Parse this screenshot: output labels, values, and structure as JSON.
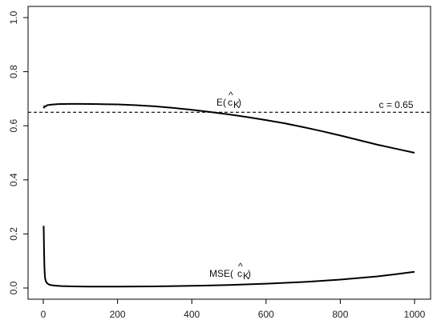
{
  "chart_data": {
    "type": "line",
    "xlim": [
      0,
      1000
    ],
    "ylim": [
      0,
      1
    ],
    "x_ticks": [
      "0",
      "200",
      "400",
      "600",
      "800",
      "1000"
    ],
    "y_ticks": [
      "0.0",
      "0.2",
      "0.4",
      "0.6",
      "0.8",
      "1.0"
    ],
    "grid": false,
    "legend": "none",
    "series": [
      {
        "key": "expectation",
        "line_color": "#000000",
        "x": [
          1,
          3,
          6,
          10,
          20,
          40,
          70,
          100,
          150,
          200,
          250,
          300,
          350,
          400,
          450,
          500,
          550,
          600,
          650,
          700,
          750,
          800,
          850,
          900,
          950,
          1000
        ],
        "y": [
          0.665,
          0.672,
          0.671,
          0.676,
          0.678,
          0.68,
          0.681,
          0.681,
          0.68,
          0.679,
          0.676,
          0.672,
          0.666,
          0.659,
          0.651,
          0.642,
          0.632,
          0.621,
          0.609,
          0.595,
          0.58,
          0.564,
          0.547,
          0.53,
          0.515,
          0.5
        ]
      },
      {
        "key": "mse",
        "line_color": "#000000",
        "x": [
          1,
          2,
          3,
          4,
          5,
          7,
          10,
          15,
          20,
          30,
          50,
          80,
          120,
          200,
          300,
          400,
          500,
          600,
          700,
          800,
          900,
          950,
          1000
        ],
        "y": [
          0.23,
          0.14,
          0.08,
          0.05,
          0.035,
          0.025,
          0.018,
          0.013,
          0.011,
          0.009,
          0.007,
          0.006,
          0.005,
          0.005,
          0.006,
          0.008,
          0.011,
          0.016,
          0.022,
          0.031,
          0.043,
          0.051,
          0.06
        ]
      }
    ],
    "reference_line": {
      "y": 0.65,
      "style": "dashed",
      "label": "c = 0.65"
    },
    "annotations": {
      "expectation_prefix": "E(",
      "mse_prefix": "MSE(",
      "estimator_hat": "^",
      "estimator_symbol": "c",
      "estimator_subscript": "K",
      "close_paren": ")"
    }
  }
}
